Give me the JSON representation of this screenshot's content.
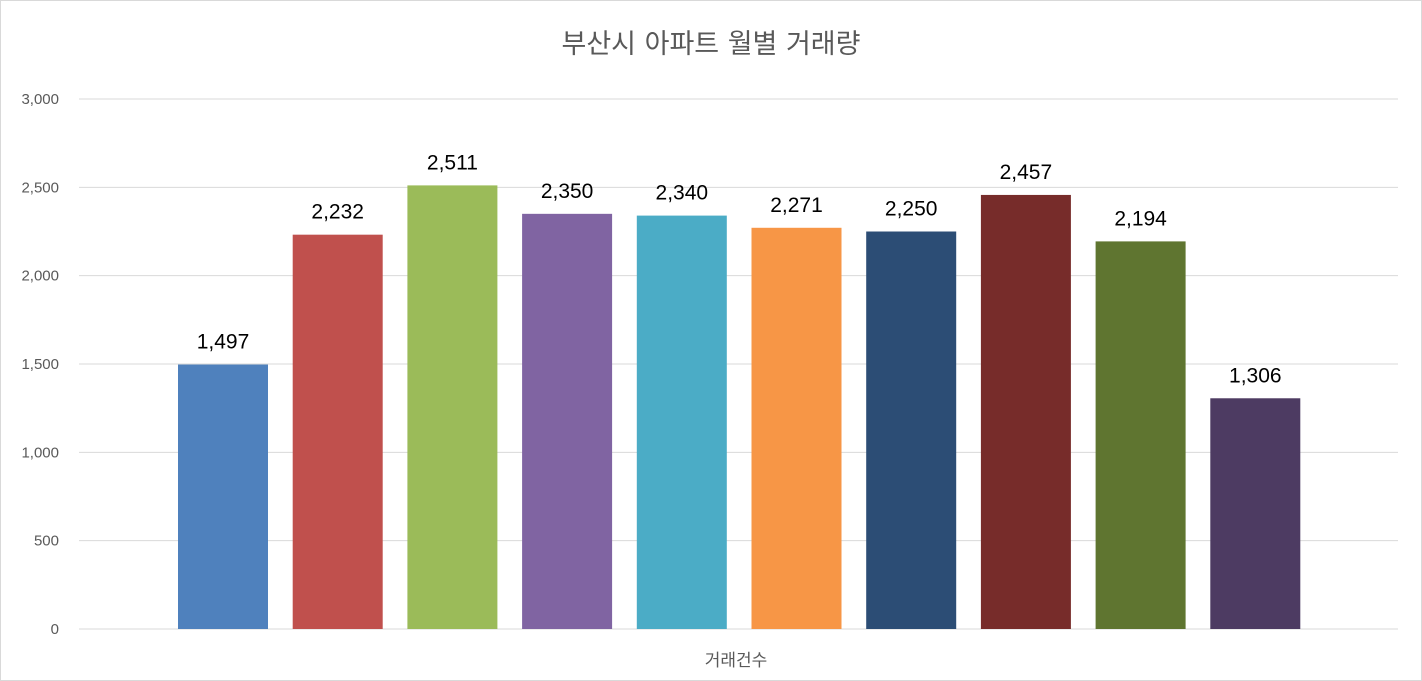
{
  "chart_data": {
    "type": "bar",
    "title": "부산시 아파트 월별 거래량",
    "xlabel": "거래건수",
    "ylabel": "",
    "ylim": [
      0,
      3000
    ],
    "y_ticks": [
      "0",
      "500",
      "1,000",
      "1,500",
      "2,000",
      "2,500",
      "3,000"
    ],
    "grid": true,
    "legend": "none",
    "values": [
      1497,
      2232,
      2511,
      2350,
      2340,
      2271,
      2250,
      2457,
      2194,
      1306
    ],
    "data_labels": [
      "1,497",
      "2,232",
      "2,511",
      "2,350",
      "2,340",
      "2,271",
      "2,250",
      "2,457",
      "2,194",
      "1,306"
    ],
    "colors": [
      "#4f81bd",
      "#c0504d",
      "#9bbb59",
      "#8064a2",
      "#4bacc6",
      "#f79646",
      "#2c4d75",
      "#772c2a",
      "#5f7530",
      "#4d3b62"
    ]
  }
}
